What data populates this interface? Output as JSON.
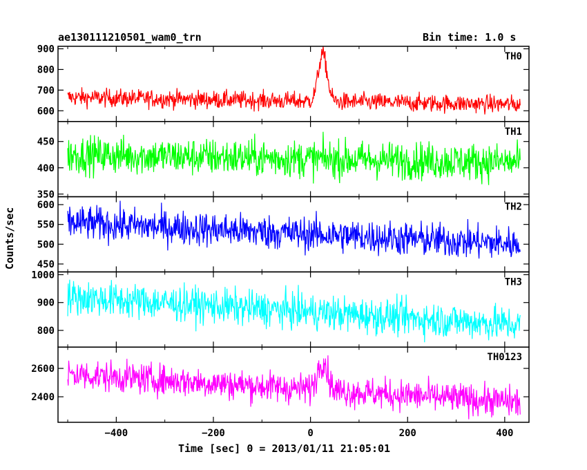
{
  "chart_data": {
    "type": "line",
    "title_left": "ae130111210501_wam0_trn",
    "title_right": "Bin time: 1.0 s",
    "xlabel": "Time [sec] 0 = 2013/01/11 21:05:01",
    "ylabel": "Counts/sec",
    "xlim": [
      -520,
      450
    ],
    "xticks": [
      -400,
      -200,
      0,
      200,
      400
    ],
    "x_range": [
      -500,
      432
    ],
    "bin_time": 1.0,
    "grid": false,
    "panels": [
      {
        "name": "TH0",
        "color": "#ff0000",
        "ylim": [
          548,
          912
        ],
        "yticks": [
          600,
          700,
          800,
          900
        ],
        "baseline": 645,
        "trend_start": 665,
        "trend_end": 630,
        "noise": 22,
        "burst": {
          "peak_x": 25,
          "peak_y": 875,
          "width": 9
        }
      },
      {
        "name": "TH1",
        "color": "#00ff00",
        "ylim": [
          345,
          488
        ],
        "yticks": [
          350,
          400,
          450
        ],
        "baseline": 415,
        "trend_start": 425,
        "trend_end": 410,
        "noise": 18,
        "burst": null
      },
      {
        "name": "TH2",
        "color": "#0000ff",
        "ylim": [
          430,
          620
        ],
        "yticks": [
          450,
          500,
          550,
          600
        ],
        "baseline": 510,
        "trend_start": 555,
        "trend_end": 500,
        "noise": 22,
        "burst": null
      },
      {
        "name": "TH3",
        "color": "#00ffff",
        "ylim": [
          740,
          1010
        ],
        "yticks": [
          800,
          900,
          1000
        ],
        "baseline": 840,
        "trend_start": 920,
        "trend_end": 820,
        "noise": 32,
        "burst": null
      },
      {
        "name": "TH0123",
        "color": "#ff00ff",
        "ylim": [
          2220,
          2750
        ],
        "yticks": [
          2400,
          2600
        ],
        "baseline": 2400,
        "trend_start": 2560,
        "trend_end": 2360,
        "noise": 55,
        "burst": {
          "peak_x": 25,
          "peak_y": 2660,
          "width": 10
        }
      }
    ]
  }
}
